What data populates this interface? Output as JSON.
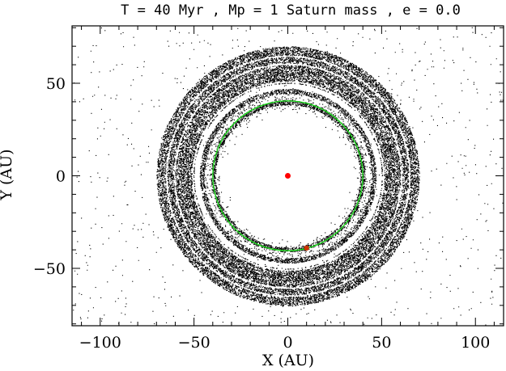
{
  "chart_data": {
    "type": "scatter",
    "title": "T = 40 Myr , Mp = 1 Saturn mass , e = 0.0",
    "xlabel": "X (AU)",
    "ylabel": "Y (AU)",
    "xlim": [
      -115,
      115
    ],
    "ylim": [
      -81,
      81
    ],
    "xticks": [
      -100,
      -50,
      0,
      50,
      100
    ],
    "yticks": [
      -50,
      0,
      50
    ],
    "x_tick_labels": [
      "−100",
      "−50",
      "0",
      "50",
      "100"
    ],
    "y_tick_labels": [
      "−50",
      "0",
      "50"
    ],
    "grid": false,
    "colors": {
      "particles": "#000000",
      "orbit": "#22dd22",
      "star": "#ff0000",
      "planet": "#cc3300"
    },
    "star": {
      "x": 0,
      "y": 0
    },
    "planet": {
      "x": 10,
      "y": -39,
      "orbit_radius": 40
    },
    "disk": {
      "main_annulus_au": [
        50,
        70
      ],
      "inner_ring_au": [
        44.5,
        47
      ],
      "planet_ring_au": [
        38.5,
        41
      ],
      "background_extent_au": [
        -115,
        115
      ],
      "white_gaps_au": [
        50.8,
        60.5,
        64.8
      ]
    }
  }
}
